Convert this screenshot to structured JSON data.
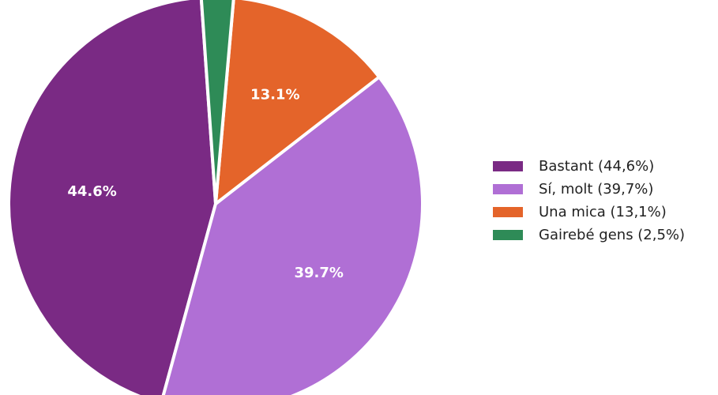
{
  "chart_data": {
    "type": "pie",
    "slices": [
      {
        "name": "Bastant",
        "value": 44.6,
        "pct_label": "44.6%",
        "legend_label": "Bastant (44,6%)",
        "color": "#7a2a84"
      },
      {
        "name": "Sí, molt",
        "value": 39.7,
        "pct_label": "39.7%",
        "legend_label": "Sí, molt (39,7%)",
        "color": "#b06fd5"
      },
      {
        "name": "Una mica",
        "value": 13.1,
        "pct_label": "13.1%",
        "legend_label": "Una mica (13,1%)",
        "color": "#e4642a"
      },
      {
        "name": "Gairebé gens",
        "value": 2.5,
        "pct_label": "",
        "legend_label": "Gairebé gens (2,5%)",
        "color": "#2e8b57"
      }
    ],
    "legend_position": "right"
  }
}
